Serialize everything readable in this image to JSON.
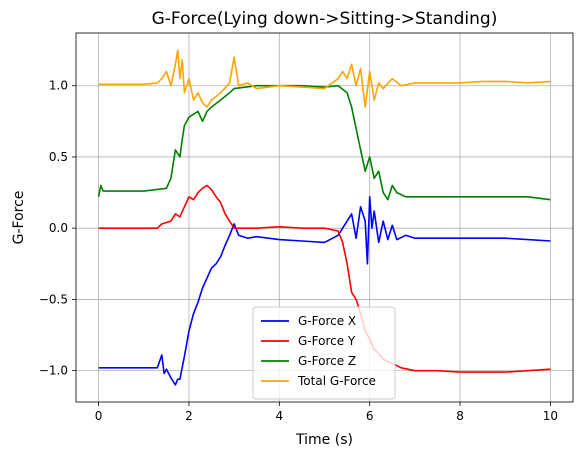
{
  "chart_data": {
    "type": "line",
    "title": "G-Force(Lying down->Sitting->Standing)",
    "xlabel": "Time (s)",
    "ylabel": "G-Force",
    "xlim": [
      -0.5,
      10.5
    ],
    "ylim": [
      -1.22,
      1.37
    ],
    "xticks": [
      0,
      2,
      4,
      6,
      8,
      10
    ],
    "xtick_labels": [
      "0",
      "2",
      "4",
      "6",
      "8",
      "10"
    ],
    "yticks": [
      -1.0,
      -0.5,
      0.0,
      0.5,
      1.0
    ],
    "ytick_labels": [
      "−1.0",
      "−0.5",
      "0.0",
      "0.5",
      "1.0"
    ],
    "grid": true,
    "legend_position": "lower-center",
    "series": [
      {
        "name": "G-Force X",
        "color": "#0000ff",
        "x": [
          0,
          0.5,
          1.0,
          1.3,
          1.4,
          1.45,
          1.5,
          1.6,
          1.7,
          1.75,
          1.8,
          1.9,
          2.0,
          2.1,
          2.2,
          2.3,
          2.4,
          2.5,
          2.6,
          2.7,
          2.8,
          2.9,
          3.0,
          3.1,
          3.3,
          3.5,
          4.0,
          4.5,
          5.0,
          5.3,
          5.5,
          5.6,
          5.7,
          5.8,
          5.9,
          5.95,
          6.0,
          6.05,
          6.1,
          6.2,
          6.3,
          6.4,
          6.5,
          6.6,
          6.8,
          7.0,
          7.5,
          8.0,
          8.5,
          9.0,
          9.5,
          10.0
        ],
        "y": [
          -0.98,
          -0.98,
          -0.98,
          -0.98,
          -0.89,
          -1.02,
          -0.99,
          -1.05,
          -1.1,
          -1.06,
          -1.06,
          -0.9,
          -0.72,
          -0.6,
          -0.52,
          -0.42,
          -0.35,
          -0.28,
          -0.25,
          -0.2,
          -0.12,
          -0.05,
          0.03,
          -0.05,
          -0.07,
          -0.06,
          -0.08,
          -0.09,
          -0.1,
          -0.05,
          0.05,
          0.1,
          -0.07,
          0.15,
          0.05,
          -0.25,
          0.22,
          0.0,
          0.12,
          -0.1,
          0.05,
          -0.08,
          0.02,
          -0.08,
          -0.05,
          -0.07,
          -0.07,
          -0.07,
          -0.07,
          -0.07,
          -0.08,
          -0.09
        ]
      },
      {
        "name": "G-Force Y",
        "color": "#ff0000",
        "x": [
          0,
          0.5,
          1.0,
          1.3,
          1.4,
          1.6,
          1.7,
          1.8,
          1.9,
          2.0,
          2.1,
          2.2,
          2.3,
          2.4,
          2.5,
          2.6,
          2.7,
          2.8,
          2.9,
          3.0,
          3.2,
          3.5,
          4.0,
          4.5,
          5.0,
          5.3,
          5.4,
          5.5,
          5.6,
          5.7,
          5.8,
          5.9,
          6.0,
          6.1,
          6.2,
          6.3,
          6.5,
          6.7,
          7.0,
          7.5,
          8.0,
          9.0,
          10.0
        ],
        "y": [
          0.0,
          0.0,
          0.0,
          0.0,
          0.03,
          0.05,
          0.1,
          0.08,
          0.15,
          0.22,
          0.2,
          0.25,
          0.28,
          0.3,
          0.27,
          0.22,
          0.18,
          0.1,
          0.05,
          0.0,
          0.0,
          0.0,
          0.01,
          0.0,
          0.0,
          -0.02,
          -0.1,
          -0.25,
          -0.45,
          -0.5,
          -0.6,
          -0.72,
          -0.78,
          -0.85,
          -0.88,
          -0.92,
          -0.95,
          -0.98,
          -1.0,
          -1.0,
          -1.01,
          -1.01,
          -0.99
        ]
      },
      {
        "name": "G-Force Z",
        "color": "#008000",
        "x": [
          0,
          0.05,
          0.1,
          0.5,
          1.0,
          1.5,
          1.6,
          1.7,
          1.8,
          1.85,
          1.9,
          2.0,
          2.1,
          2.2,
          2.3,
          2.4,
          2.5,
          2.7,
          2.9,
          3.0,
          3.5,
          4.0,
          4.5,
          5.0,
          5.3,
          5.5,
          5.6,
          5.7,
          5.8,
          5.9,
          6.0,
          6.1,
          6.2,
          6.3,
          6.4,
          6.5,
          6.6,
          6.8,
          7.0,
          7.5,
          8.0,
          8.5,
          9.0,
          9.5,
          10.0
        ],
        "y": [
          0.22,
          0.3,
          0.26,
          0.26,
          0.26,
          0.28,
          0.35,
          0.55,
          0.5,
          0.62,
          0.72,
          0.78,
          0.8,
          0.82,
          0.75,
          0.82,
          0.85,
          0.9,
          0.95,
          0.98,
          1.0,
          1.0,
          1.0,
          0.99,
          1.0,
          0.95,
          0.85,
          0.7,
          0.55,
          0.4,
          0.5,
          0.35,
          0.4,
          0.25,
          0.2,
          0.3,
          0.25,
          0.22,
          0.22,
          0.22,
          0.22,
          0.22,
          0.22,
          0.22,
          0.2
        ]
      },
      {
        "name": "Total G-Force",
        "color": "#ffa500",
        "x": [
          0,
          0.5,
          1.0,
          1.3,
          1.4,
          1.5,
          1.6,
          1.7,
          1.75,
          1.8,
          1.85,
          1.9,
          2.0,
          2.1,
          2.2,
          2.3,
          2.4,
          2.5,
          2.7,
          2.9,
          3.0,
          3.1,
          3.3,
          3.5,
          4.0,
          4.5,
          5.0,
          5.3,
          5.4,
          5.5,
          5.6,
          5.7,
          5.8,
          5.9,
          6.0,
          6.1,
          6.2,
          6.3,
          6.5,
          6.7,
          7.0,
          7.5,
          8.0,
          8.5,
          9.0,
          9.5,
          10.0
        ],
        "y": [
          1.01,
          1.01,
          1.01,
          1.02,
          1.05,
          1.1,
          1.0,
          1.15,
          1.25,
          1.05,
          1.18,
          0.95,
          1.05,
          0.9,
          0.95,
          0.88,
          0.85,
          0.9,
          0.95,
          1.02,
          1.2,
          1.0,
          1.02,
          0.98,
          1.0,
          0.99,
          0.98,
          1.05,
          1.1,
          1.05,
          1.15,
          1.0,
          1.12,
          0.85,
          1.1,
          0.9,
          1.02,
          0.98,
          1.05,
          1.0,
          1.02,
          1.02,
          1.02,
          1.03,
          1.03,
          1.02,
          1.03
        ]
      }
    ]
  }
}
